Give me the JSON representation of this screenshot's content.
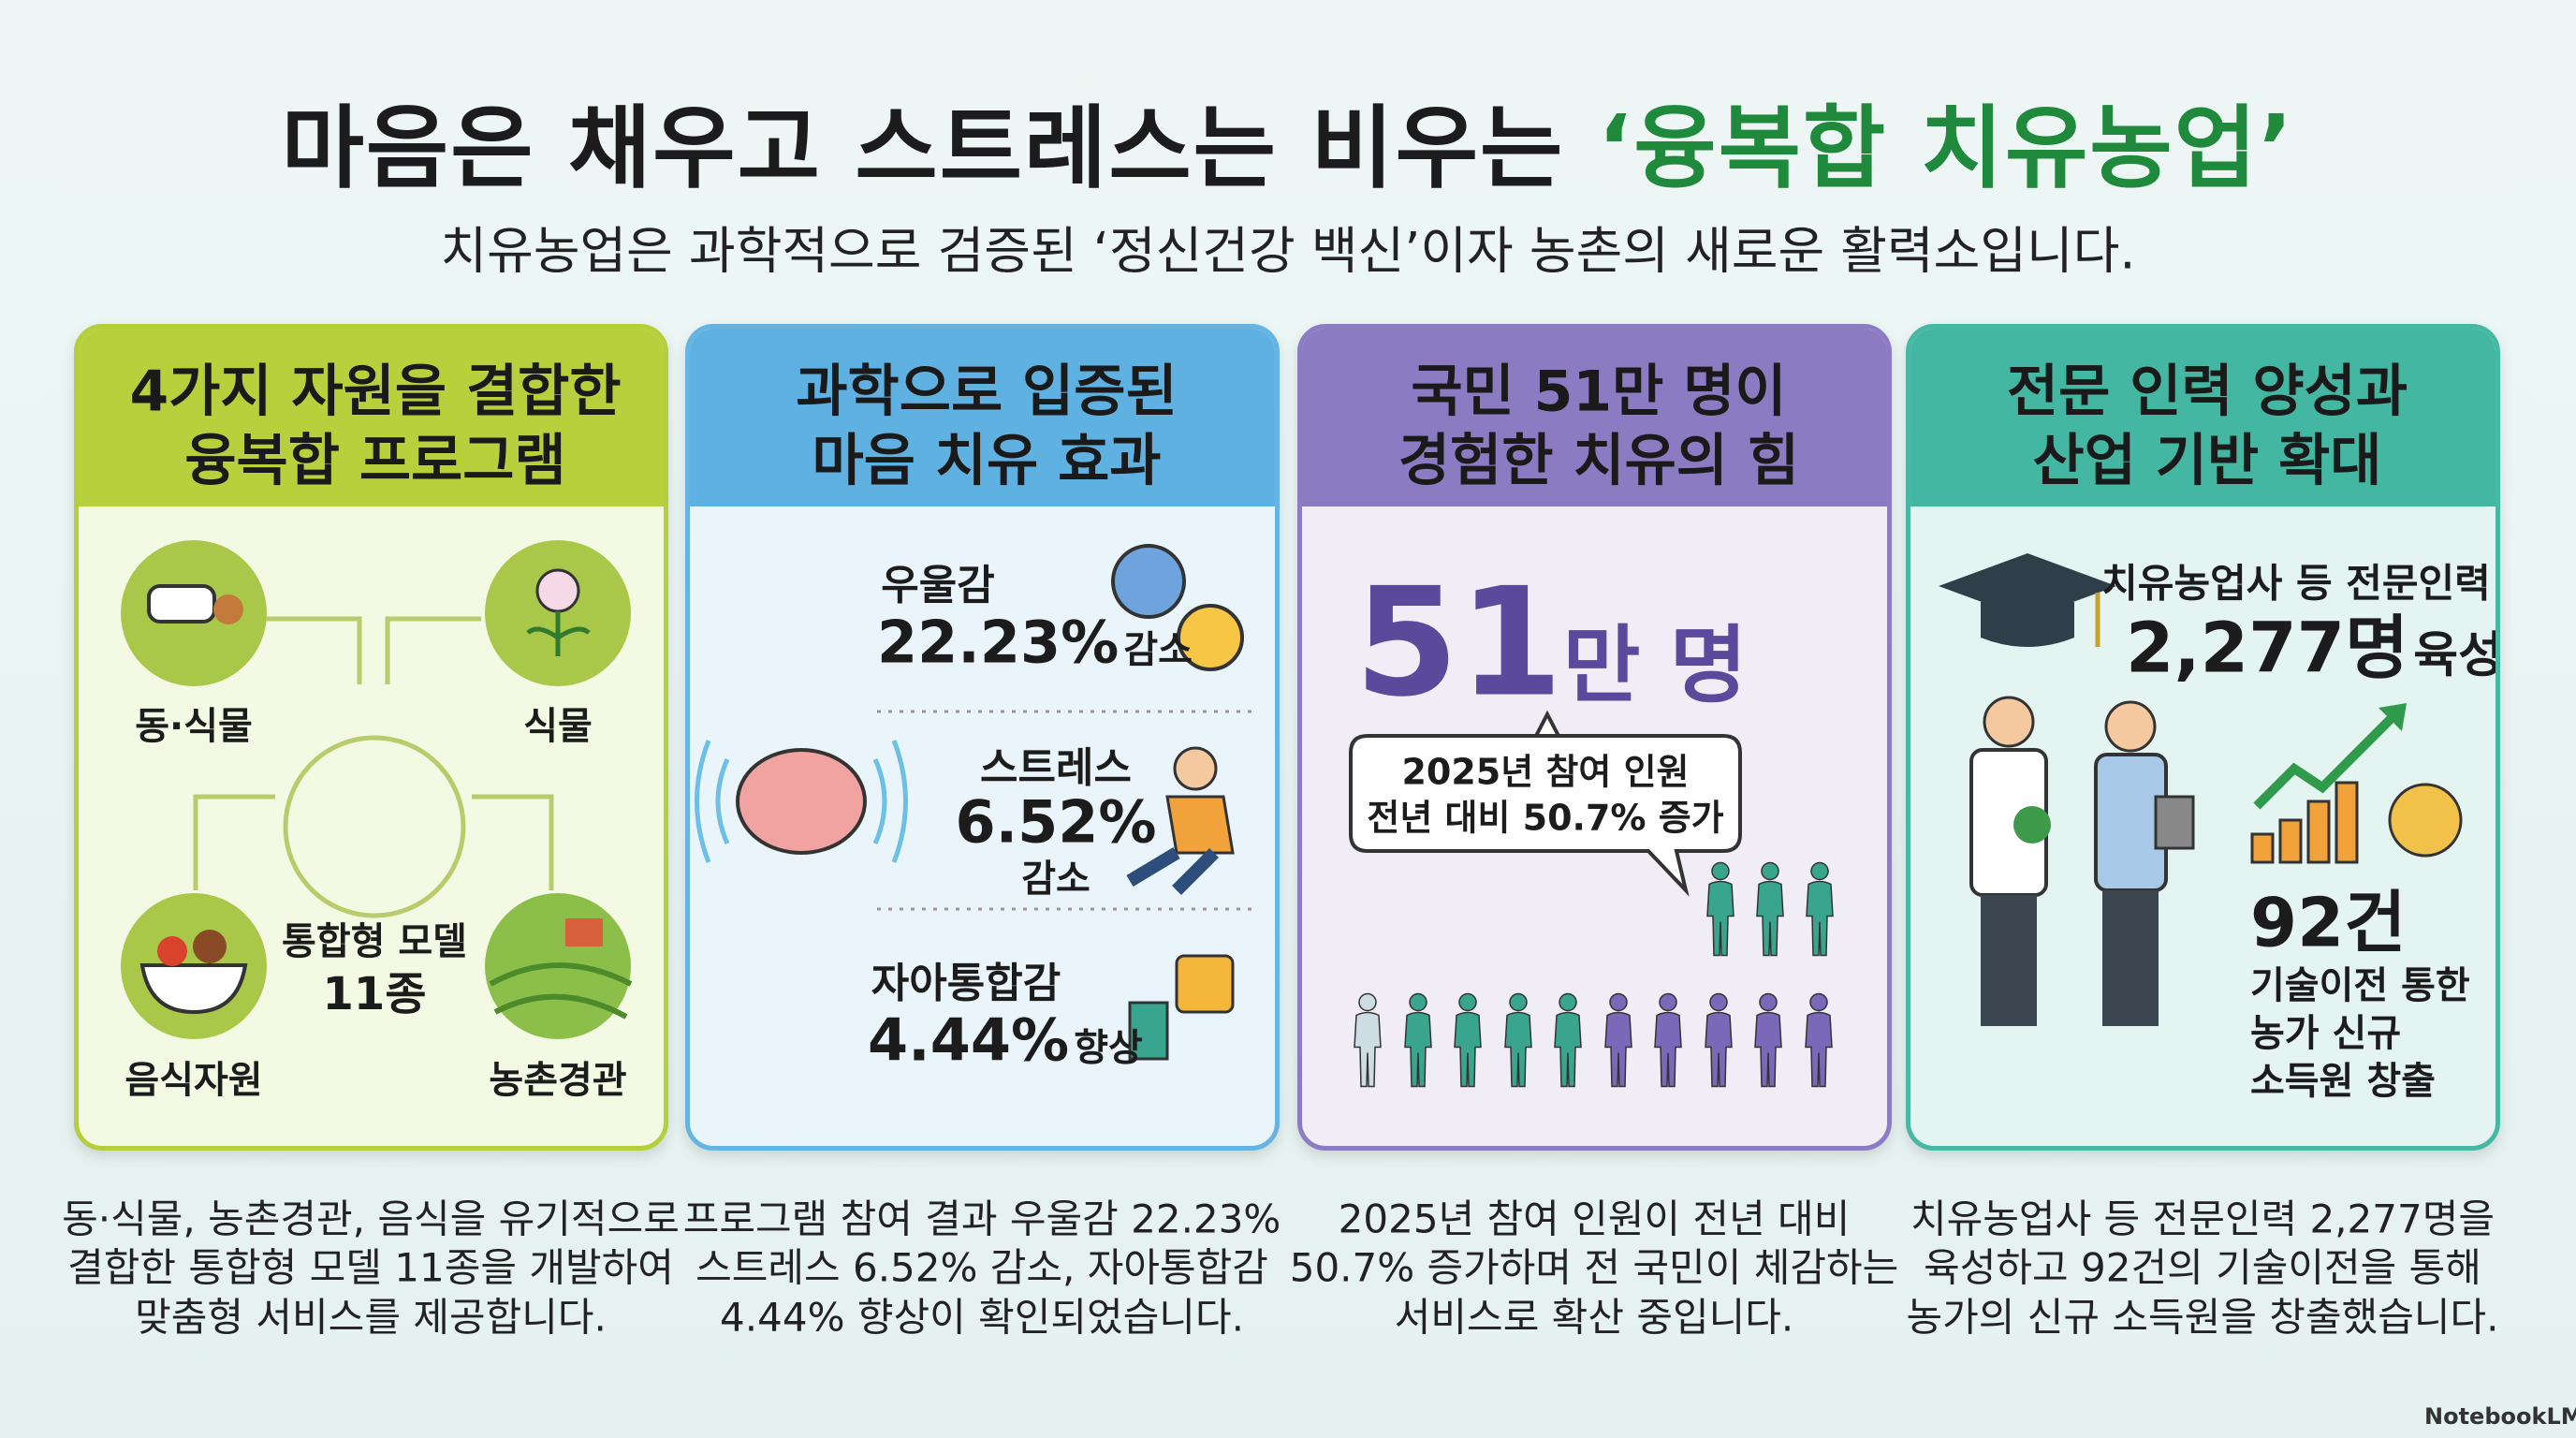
{
  "header": {
    "title": "마음은 채우고 스트레스는 비우는",
    "title_highlight": "‘융복합 치유농업’",
    "subtitle": "치유농업은 과학적으로 검증된 ‘정신건강 백신’이자 농촌의 새로운 활력소입니다."
  },
  "panels": [
    {
      "title": [
        "4가지 자원을 결합한",
        "융복합 프로그램"
      ],
      "resources": [
        "동·식물",
        "식물",
        "음식자원",
        "농촌경관"
      ],
      "center": [
        "통합형 모델",
        "11종"
      ],
      "caption": [
        "동·식물, 농촌경관, 음식을 유기적으로",
        "결합한 통합형 모델 11종을 개발하여",
        "맞춤형 서비스를 제공합니다."
      ]
    },
    {
      "title": [
        "과학으로 입증된",
        "마음 치유 효과"
      ],
      "items": [
        {
          "label": "우울감",
          "value": "22.23%",
          "effect": "감소"
        },
        {
          "label": "스트레스",
          "value": "6.52%",
          "effect": "감소"
        },
        {
          "label": "자아통합감",
          "value": "4.44%",
          "effect": "향상"
        }
      ],
      "caption": [
        "프로그램 참여 결과 우울감 22.23%",
        "스트레스 6.52% 감소, 자아통합감",
        "4.44% 향상이 확인되었습니다."
      ]
    },
    {
      "title": [
        "국민 51만 명이",
        "경험한 치유의 힘"
      ],
      "big_number": "51",
      "big_unit": "만 명",
      "bubble": [
        "2025년 참여 인원",
        "전년 대비 50.7% 증가"
      ],
      "caption": [
        "2025년 참여 인원이 전년 대비",
        "50.7% 증가하며 전 국민이 체감하는",
        "서비스로 확산 중입니다."
      ]
    },
    {
      "title": [
        "전문 인력 양성과",
        "산업 기반 확대"
      ],
      "stat_label": "치유농업사 등 전문인력",
      "stat_value": "2,277명",
      "stat_verb": "육성",
      "tech_value": "92건",
      "tech_text": [
        "기술이전 통한",
        "농가 신규",
        "소득원 창출"
      ],
      "caption": [
        "치유농업사 등 전문인력 2,277명을",
        "육성하고 92건의 기술이전을 통해",
        "농가의 신규 소득원을 창출했습니다."
      ]
    }
  ],
  "footer": {
    "brand": "NotebookLM"
  }
}
